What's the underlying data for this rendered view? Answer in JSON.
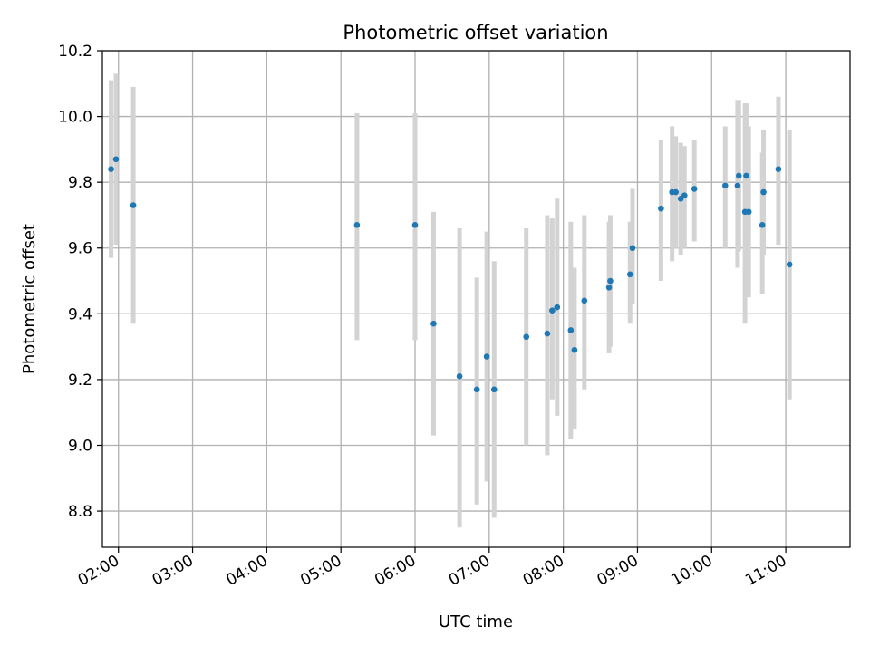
{
  "chart_data": {
    "type": "scatter",
    "title": "Photometric offset variation",
    "xlabel": "UTC time",
    "ylabel": "Photometric offset",
    "x_axis_kind": "time",
    "xlim": [
      "01:47",
      "11:52"
    ],
    "ylim": [
      8.69,
      10.2
    ],
    "grid": true,
    "x_ticks": [
      "02:00",
      "03:00",
      "04:00",
      "05:00",
      "06:00",
      "07:00",
      "08:00",
      "09:00",
      "10:00",
      "11:00"
    ],
    "y_ticks": [
      "8.8",
      "9.0",
      "9.2",
      "9.4",
      "9.6",
      "9.8",
      "10.0",
      "10.2"
    ],
    "colors": {
      "marker": "#1f77b4",
      "errorbar": "#d3d3d3",
      "grid": "#b0b0b0"
    },
    "points": [
      {
        "x": "01:54",
        "y": 9.84,
        "ymin": 9.57,
        "ymax": 10.11
      },
      {
        "x": "01:58",
        "y": 9.87,
        "ymin": 9.61,
        "ymax": 10.13
      },
      {
        "x": "02:12",
        "y": 9.73,
        "ymin": 9.37,
        "ymax": 10.09
      },
      {
        "x": "05:13",
        "y": 9.67,
        "ymin": 9.32,
        "ymax": 10.01
      },
      {
        "x": "06:00",
        "y": 9.67,
        "ymin": 9.32,
        "ymax": 10.01
      },
      {
        "x": "06:15",
        "y": 9.37,
        "ymin": 9.03,
        "ymax": 9.71
      },
      {
        "x": "06:36",
        "y": 9.21,
        "ymin": 8.75,
        "ymax": 9.66
      },
      {
        "x": "06:50",
        "y": 9.17,
        "ymin": 8.82,
        "ymax": 9.51
      },
      {
        "x": "06:58",
        "y": 9.27,
        "ymin": 8.89,
        "ymax": 9.65
      },
      {
        "x": "07:04",
        "y": 9.17,
        "ymin": 8.78,
        "ymax": 9.56
      },
      {
        "x": "07:30",
        "y": 9.33,
        "ymin": 9.0,
        "ymax": 9.66
      },
      {
        "x": "07:47",
        "y": 9.34,
        "ymin": 8.97,
        "ymax": 9.7
      },
      {
        "x": "07:51",
        "y": 9.41,
        "ymin": 9.14,
        "ymax": 9.69
      },
      {
        "x": "07:55",
        "y": 9.42,
        "ymin": 9.09,
        "ymax": 9.75
      },
      {
        "x": "08:06",
        "y": 9.35,
        "ymin": 9.02,
        "ymax": 9.68
      },
      {
        "x": "08:09",
        "y": 9.29,
        "ymin": 9.05,
        "ymax": 9.54
      },
      {
        "x": "08:17",
        "y": 9.44,
        "ymin": 9.17,
        "ymax": 9.7
      },
      {
        "x": "08:37",
        "y": 9.48,
        "ymin": 9.28,
        "ymax": 9.68
      },
      {
        "x": "08:38",
        "y": 9.5,
        "ymin": 9.3,
        "ymax": 9.7
      },
      {
        "x": "08:54",
        "y": 9.52,
        "ymin": 9.37,
        "ymax": 9.68
      },
      {
        "x": "08:56",
        "y": 9.6,
        "ymin": 9.43,
        "ymax": 9.78
      },
      {
        "x": "09:19",
        "y": 9.72,
        "ymin": 9.5,
        "ymax": 9.93
      },
      {
        "x": "09:28",
        "y": 9.77,
        "ymin": 9.56,
        "ymax": 9.97
      },
      {
        "x": "09:31",
        "y": 9.77,
        "ymin": 9.6,
        "ymax": 9.94
      },
      {
        "x": "09:35",
        "y": 9.75,
        "ymin": 9.58,
        "ymax": 9.92
      },
      {
        "x": "09:38",
        "y": 9.76,
        "ymin": 9.6,
        "ymax": 9.91
      },
      {
        "x": "09:46",
        "y": 9.78,
        "ymin": 9.62,
        "ymax": 9.93
      },
      {
        "x": "10:11",
        "y": 9.79,
        "ymin": 9.6,
        "ymax": 9.97
      },
      {
        "x": "10:21",
        "y": 9.79,
        "ymin": 9.54,
        "ymax": 10.05
      },
      {
        "x": "10:22",
        "y": 9.82,
        "ymin": 9.59,
        "ymax": 10.05
      },
      {
        "x": "10:27",
        "y": 9.71,
        "ymin": 9.37,
        "ymax": 10.04
      },
      {
        "x": "10:28",
        "y": 9.82,
        "ymin": 9.6,
        "ymax": 10.04
      },
      {
        "x": "10:30",
        "y": 9.71,
        "ymin": 9.45,
        "ymax": 9.97
      },
      {
        "x": "10:41",
        "y": 9.67,
        "ymin": 9.46,
        "ymax": 9.89
      },
      {
        "x": "10:42",
        "y": 9.77,
        "ymin": 9.58,
        "ymax": 9.96
      },
      {
        "x": "10:54",
        "y": 9.84,
        "ymin": 9.61,
        "ymax": 10.06
      },
      {
        "x": "11:03",
        "y": 9.55,
        "ymin": 9.14,
        "ymax": 9.96
      }
    ]
  }
}
